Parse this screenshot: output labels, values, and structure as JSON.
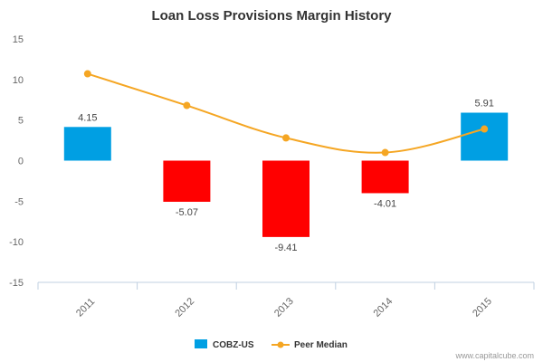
{
  "colors": {
    "positive_bar": "#009fe3",
    "negative_bar": "#ff0000",
    "peer_line": "#f5a623",
    "axis": "#c0d0e0",
    "text": "#666666"
  },
  "legend": [
    {
      "label": "COBZ-US",
      "marker": "square"
    },
    {
      "label": "Peer Median",
      "marker": "line-dot"
    }
  ],
  "credit": "www.capitalcube.com",
  "chart_data": {
    "type": "bar",
    "title": "Loan Loss Provisions Margin History",
    "xlabel": "",
    "ylabel": "",
    "categories": [
      "2011",
      "2012",
      "2013",
      "2014",
      "2015"
    ],
    "ylim": [
      -15,
      15
    ],
    "yticks": [
      "15",
      "10",
      "5",
      "0",
      "-5",
      "-10",
      "-15"
    ],
    "grid": false,
    "legend_position": "bottom-center",
    "series": [
      {
        "name": "COBZ-US",
        "type": "bar",
        "values": [
          4.15,
          -5.07,
          -9.41,
          -4.01,
          5.91
        ],
        "data_labels": [
          "4.15",
          "-5.07",
          "-9.41",
          "-4.01",
          "5.91"
        ]
      },
      {
        "name": "Peer Median",
        "type": "line",
        "smooth": true,
        "values": [
          10.7,
          6.8,
          2.8,
          1.0,
          3.9
        ]
      }
    ]
  }
}
